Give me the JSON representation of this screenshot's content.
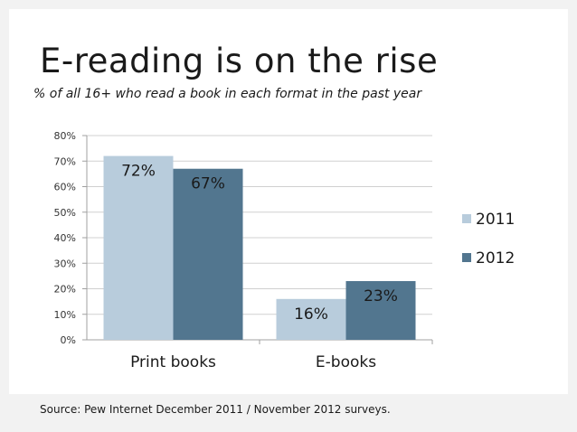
{
  "slide": {
    "title": "E-reading is on the rise",
    "subtitle": "% of all 16+ who read a book in each format in the past year",
    "source": "Source: Pew Internet December 2011 / November 2012 surveys."
  },
  "chart_data": {
    "type": "bar",
    "title": "",
    "xlabel": "",
    "ylabel": "",
    "categories": [
      "Print books",
      "E-books"
    ],
    "series": [
      {
        "name": "2011",
        "values": [
          72,
          16
        ],
        "labels": [
          "72%",
          "16%"
        ],
        "color": "#b8ccdc"
      },
      {
        "name": "2012",
        "values": [
          67,
          23
        ],
        "labels": [
          "67%",
          "23%"
        ],
        "color": "#52768f"
      }
    ],
    "ylim": [
      0,
      80
    ],
    "yticks": [
      0,
      10,
      20,
      30,
      40,
      50,
      60,
      70,
      80
    ],
    "ytick_labels": [
      "0%",
      "10%",
      "20%",
      "30%",
      "40%",
      "50%",
      "60%",
      "70%",
      "80%"
    ],
    "grid": true,
    "legend_position": "right"
  }
}
